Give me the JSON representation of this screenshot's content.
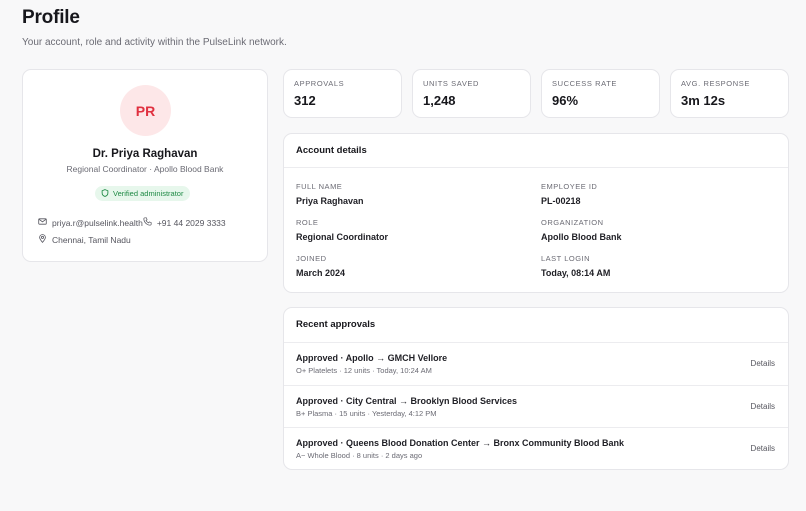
{
  "page": {
    "title": "Profile",
    "subtitle": "Your account, role and activity within the PulseLink network."
  },
  "profile": {
    "initials": "PR",
    "name": "Dr. Priya Raghavan",
    "role_line": "Regional Coordinator · Apollo Blood Bank",
    "badge": "Verified administrator",
    "email": "priya.r@pulselink.health",
    "phone": "+91 44 2029 3333",
    "location": "Chennai, Tamil Nadu"
  },
  "stats": [
    {
      "label": "Approvals",
      "value": "312"
    },
    {
      "label": "Units saved",
      "value": "1,248"
    },
    {
      "label": "Success rate",
      "value": "96%"
    },
    {
      "label": "Avg. response",
      "value": "3m 12s"
    }
  ],
  "account": {
    "title": "Account details",
    "fields": [
      {
        "label": "Full name",
        "value": "Priya Raghavan"
      },
      {
        "label": "Employee ID",
        "value": "PL-00218"
      },
      {
        "label": "Role",
        "value": "Regional Coordinator"
      },
      {
        "label": "Organization",
        "value": "Apollo Blood Bank"
      },
      {
        "label": "Joined",
        "value": "March 2024"
      },
      {
        "label": "Last login",
        "value": "Today, 08:14 AM"
      }
    ]
  },
  "approvals": {
    "title": "Recent approvals",
    "details_label": "Details",
    "items": [
      {
        "title": "Approved · Apollo → GMCH Vellore",
        "meta": "O+ Platelets · 12 units · Today, 10:24 AM"
      },
      {
        "title": "Approved · City Central → Brooklyn Blood Services",
        "meta": "B+ Plasma · 15 units · Yesterday, 4:12 PM"
      },
      {
        "title": "Approved · Queens Blood Donation Center → Bronx Community Blood Bank",
        "meta": "A− Whole Blood · 8 units · 2 days ago"
      }
    ]
  },
  "colors": {
    "accent": "#e0303f",
    "avatar_bg": "#fde7e8",
    "verified": "#1f8a45",
    "verified_bg": "#e7f7ec"
  }
}
